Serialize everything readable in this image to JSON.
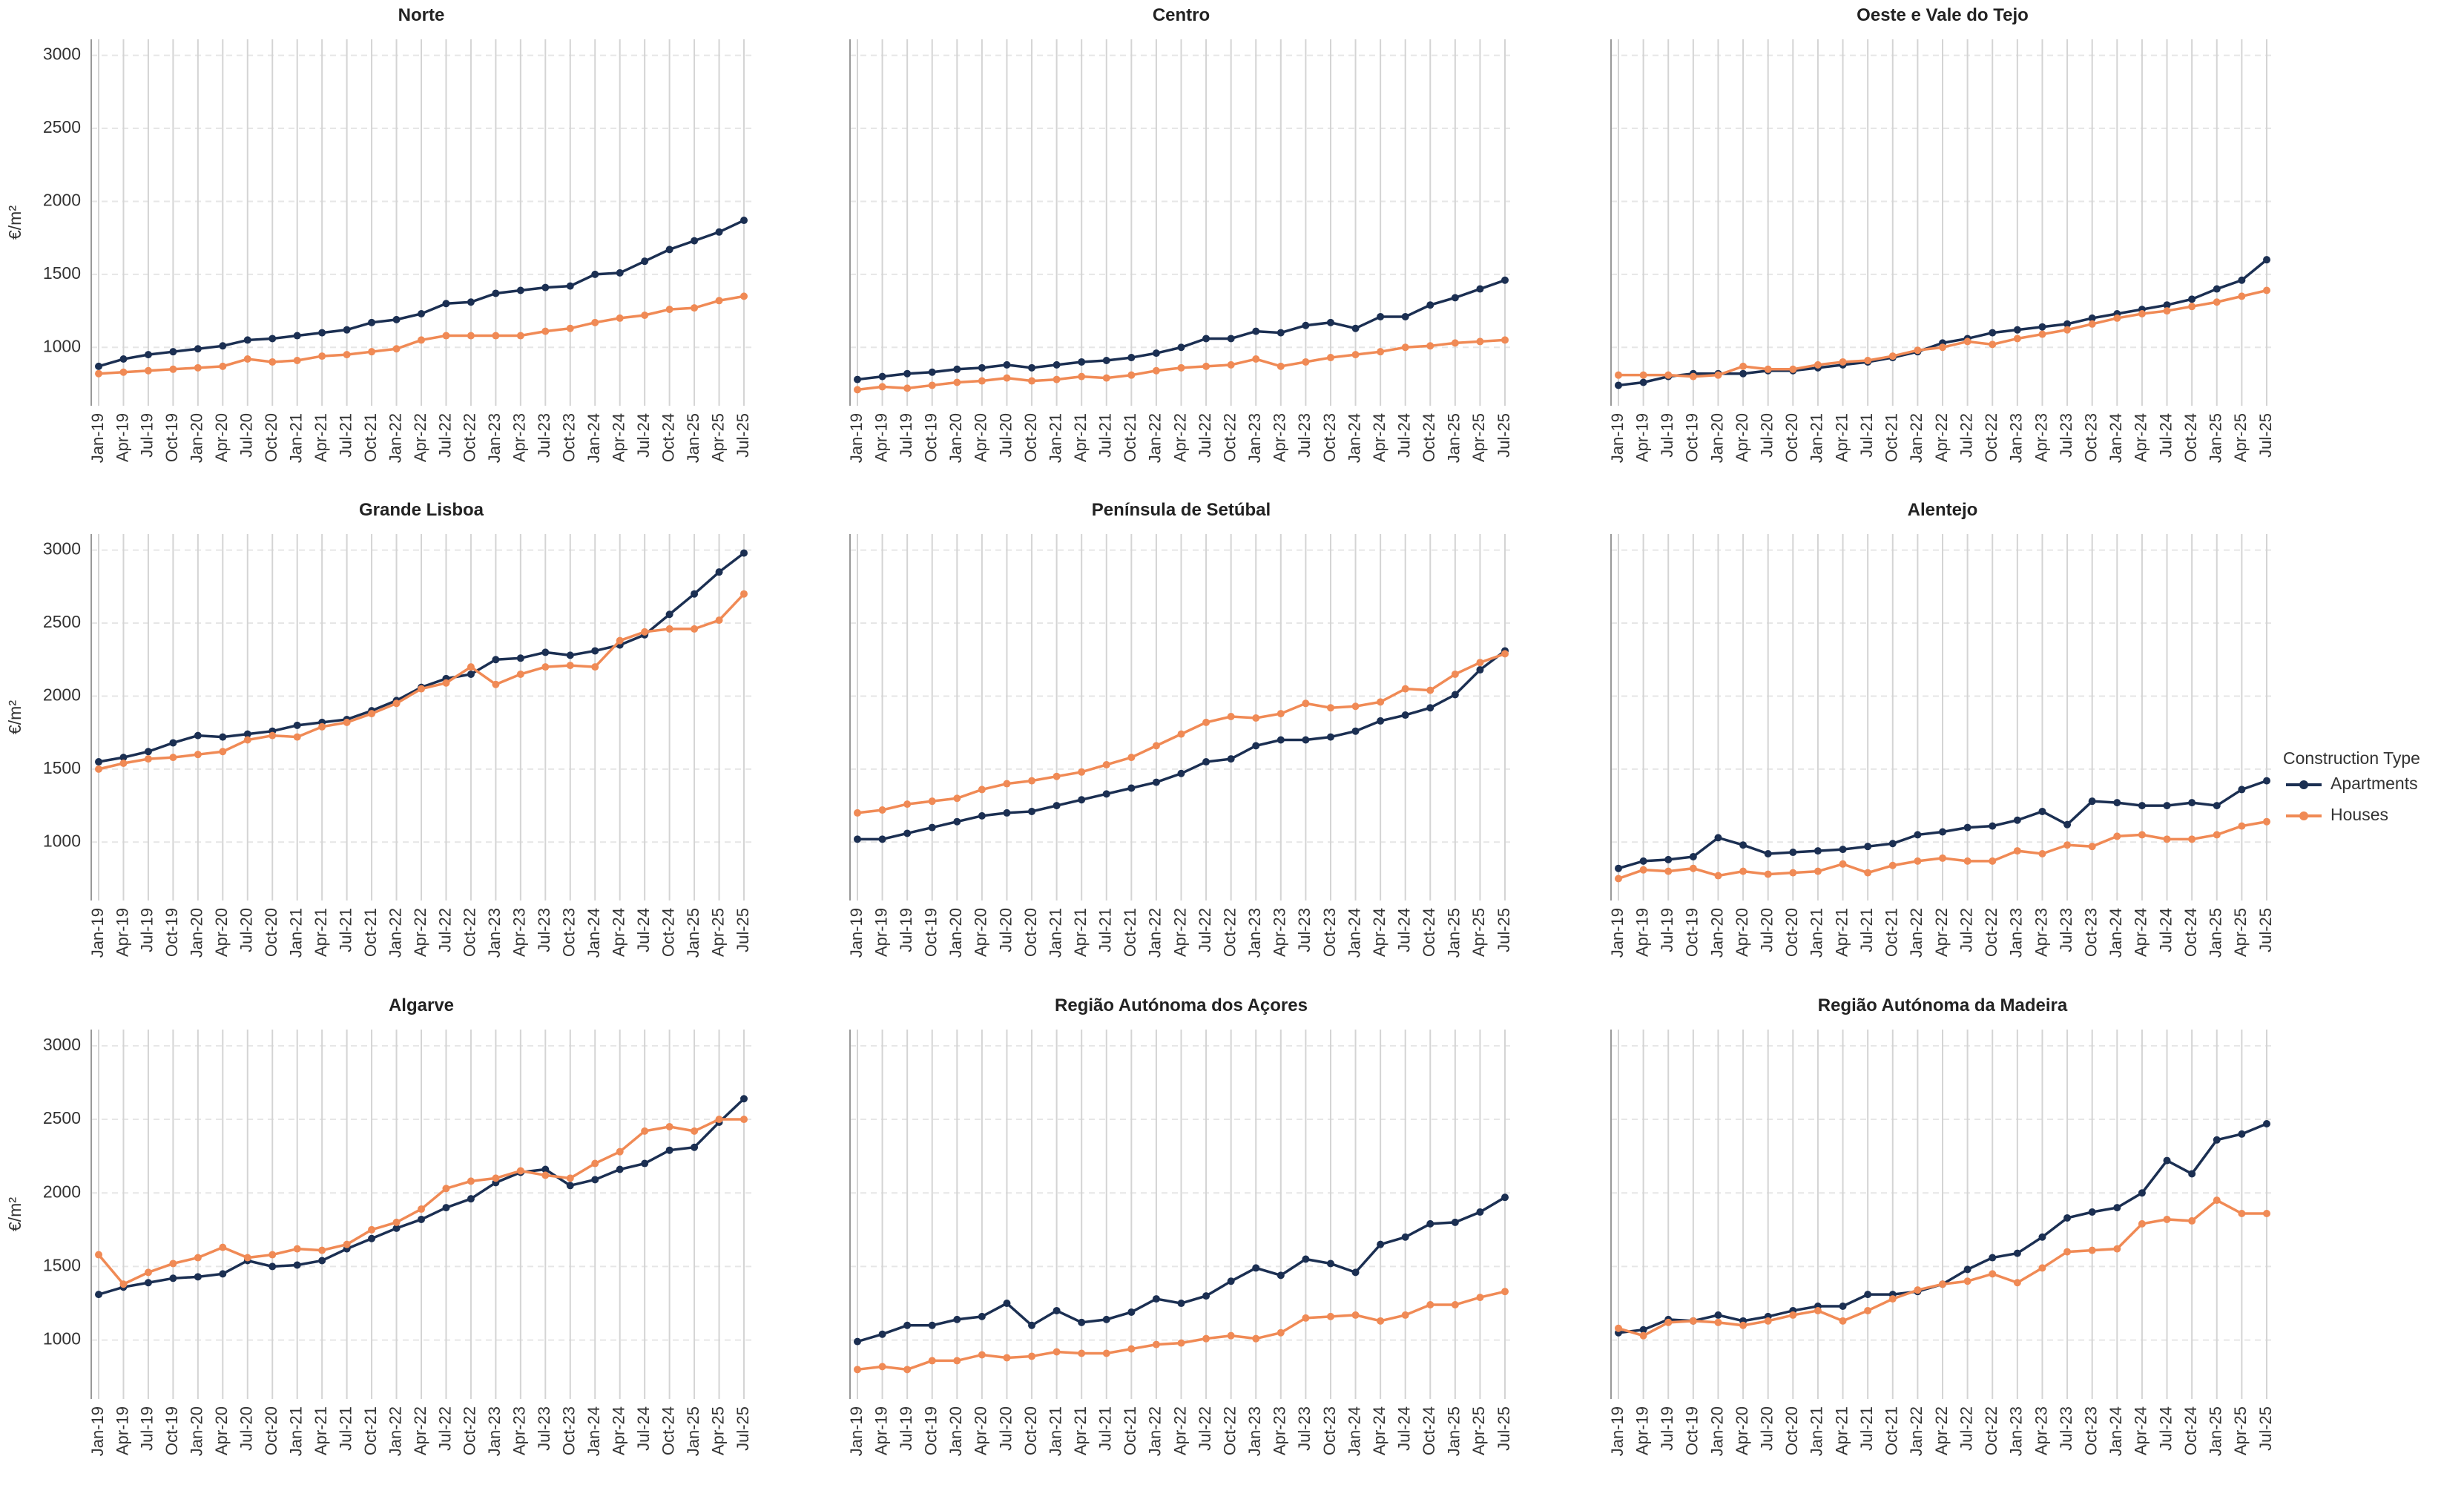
{
  "legend_title": "Construction Type",
  "chart_data": [
    {
      "type": "line",
      "title": "Norte",
      "y_label": "€/m²",
      "categories": [
        "Jan-19",
        "Apr-19",
        "Jul-19",
        "Oct-19",
        "Jan-20",
        "Apr-20",
        "Jul-20",
        "Oct-20",
        "Jan-21",
        "Apr-21",
        "Jul-21",
        "Oct-21",
        "Jan-22",
        "Apr-22",
        "Jul-22",
        "Oct-22",
        "Jan-23",
        "Apr-23",
        "Jul-23",
        "Oct-23",
        "Jan-24",
        "Apr-24",
        "Jul-24",
        "Oct-24",
        "Jan-25",
        "Apr-25",
        "Jul-25"
      ],
      "ylim": [
        600,
        3110
      ],
      "yticks": [
        1000,
        1500,
        2000,
        2500,
        3000
      ],
      "grid": true,
      "series": [
        {
          "name": "Apartments",
          "color": "#1b2f52",
          "values": [
            870,
            920,
            950,
            970,
            990,
            1010,
            1050,
            1060,
            1080,
            1100,
            1120,
            1170,
            1190,
            1230,
            1300,
            1310,
            1370,
            1390,
            1410,
            1420,
            1500,
            1510,
            1590,
            1670,
            1730,
            1790,
            1870
          ]
        },
        {
          "name": "Houses",
          "color": "#f08a55",
          "values": [
            820,
            830,
            840,
            850,
            860,
            870,
            920,
            900,
            910,
            940,
            950,
            970,
            990,
            1050,
            1080,
            1080,
            1080,
            1080,
            1110,
            1130,
            1170,
            1200,
            1220,
            1260,
            1270,
            1320,
            1350
          ]
        }
      ]
    },
    {
      "type": "line",
      "title": "Centro",
      "categories": [
        "Jan-19",
        "Apr-19",
        "Jul-19",
        "Oct-19",
        "Jan-20",
        "Apr-20",
        "Jul-20",
        "Oct-20",
        "Jan-21",
        "Apr-21",
        "Jul-21",
        "Oct-21",
        "Jan-22",
        "Apr-22",
        "Jul-22",
        "Oct-22",
        "Jan-23",
        "Apr-23",
        "Jul-23",
        "Oct-23",
        "Jan-24",
        "Apr-24",
        "Jul-24",
        "Oct-24",
        "Jan-25",
        "Apr-25",
        "Jul-25"
      ],
      "ylim": [
        600,
        3110
      ],
      "yticks": [
        1000,
        1500,
        2000,
        2500,
        3000
      ],
      "grid": true,
      "series": [
        {
          "name": "Apartments",
          "color": "#1b2f52",
          "values": [
            780,
            800,
            820,
            830,
            850,
            860,
            880,
            860,
            880,
            900,
            910,
            930,
            960,
            1000,
            1060,
            1060,
            1110,
            1100,
            1150,
            1170,
            1130,
            1210,
            1210,
            1290,
            1340,
            1400,
            1460
          ]
        },
        {
          "name": "Houses",
          "color": "#f08a55",
          "values": [
            710,
            730,
            720,
            740,
            760,
            770,
            790,
            770,
            780,
            800,
            790,
            810,
            840,
            860,
            870,
            880,
            920,
            870,
            900,
            930,
            950,
            970,
            1000,
            1010,
            1030,
            1040,
            1050
          ]
        }
      ]
    },
    {
      "type": "line",
      "title": "Oeste e Vale do Tejo",
      "categories": [
        "Jan-19",
        "Apr-19",
        "Jul-19",
        "Oct-19",
        "Jan-20",
        "Apr-20",
        "Jul-20",
        "Oct-20",
        "Jan-21",
        "Apr-21",
        "Jul-21",
        "Oct-21",
        "Jan-22",
        "Apr-22",
        "Jul-22",
        "Oct-22",
        "Jan-23",
        "Apr-23",
        "Jul-23",
        "Oct-23",
        "Jan-24",
        "Apr-24",
        "Jul-24",
        "Oct-24",
        "Jan-25",
        "Apr-25",
        "Jul-25"
      ],
      "ylim": [
        600,
        3110
      ],
      "yticks": [
        1000,
        1500,
        2000,
        2500,
        3000
      ],
      "grid": true,
      "series": [
        {
          "name": "Apartments",
          "color": "#1b2f52",
          "values": [
            740,
            760,
            800,
            820,
            820,
            820,
            840,
            840,
            860,
            880,
            900,
            930,
            970,
            1030,
            1060,
            1100,
            1120,
            1140,
            1160,
            1200,
            1230,
            1260,
            1290,
            1330,
            1400,
            1460,
            1600
          ]
        },
        {
          "name": "Houses",
          "color": "#f08a55",
          "values": [
            810,
            810,
            810,
            800,
            810,
            870,
            850,
            850,
            880,
            900,
            910,
            940,
            980,
            1000,
            1040,
            1020,
            1060,
            1090,
            1120,
            1160,
            1200,
            1230,
            1250,
            1280,
            1310,
            1350,
            1390
          ]
        }
      ]
    },
    {
      "type": "line",
      "title": "Grande Lisboa",
      "y_label": "€/m²",
      "categories": [
        "Jan-19",
        "Apr-19",
        "Jul-19",
        "Oct-19",
        "Jan-20",
        "Apr-20",
        "Jul-20",
        "Oct-20",
        "Jan-21",
        "Apr-21",
        "Jul-21",
        "Oct-21",
        "Jan-22",
        "Apr-22",
        "Jul-22",
        "Oct-22",
        "Jan-23",
        "Apr-23",
        "Jul-23",
        "Oct-23",
        "Jan-24",
        "Apr-24",
        "Jul-24",
        "Oct-24",
        "Jan-25",
        "Apr-25",
        "Jul-25"
      ],
      "ylim": [
        600,
        3110
      ],
      "yticks": [
        1000,
        1500,
        2000,
        2500,
        3000
      ],
      "grid": true,
      "series": [
        {
          "name": "Apartments",
          "color": "#1b2f52",
          "values": [
            1550,
            1580,
            1620,
            1680,
            1730,
            1720,
            1740,
            1760,
            1800,
            1820,
            1840,
            1900,
            1970,
            2060,
            2120,
            2150,
            2250,
            2260,
            2300,
            2280,
            2310,
            2350,
            2420,
            2560,
            2700,
            2850,
            2980
          ]
        },
        {
          "name": "Houses",
          "color": "#f08a55",
          "values": [
            1500,
            1540,
            1570,
            1580,
            1600,
            1620,
            1700,
            1730,
            1720,
            1790,
            1820,
            1880,
            1950,
            2050,
            2090,
            2200,
            2080,
            2150,
            2200,
            2210,
            2200,
            2380,
            2440,
            2460,
            2460,
            2520,
            2700
          ]
        }
      ]
    },
    {
      "type": "line",
      "title": "Península de Setúbal",
      "categories": [
        "Jan-19",
        "Apr-19",
        "Jul-19",
        "Oct-19",
        "Jan-20",
        "Apr-20",
        "Jul-20",
        "Oct-20",
        "Jan-21",
        "Apr-21",
        "Jul-21",
        "Oct-21",
        "Jan-22",
        "Apr-22",
        "Jul-22",
        "Oct-22",
        "Jan-23",
        "Apr-23",
        "Jul-23",
        "Oct-23",
        "Jan-24",
        "Apr-24",
        "Jul-24",
        "Oct-24",
        "Jan-25",
        "Apr-25",
        "Jul-25"
      ],
      "ylim": [
        600,
        3110
      ],
      "yticks": [
        1000,
        1500,
        2000,
        2500,
        3000
      ],
      "grid": true,
      "series": [
        {
          "name": "Apartments",
          "color": "#1b2f52",
          "values": [
            1020,
            1020,
            1060,
            1100,
            1140,
            1180,
            1200,
            1210,
            1250,
            1290,
            1330,
            1370,
            1410,
            1470,
            1550,
            1570,
            1660,
            1700,
            1700,
            1720,
            1760,
            1830,
            1870,
            1920,
            2010,
            2180,
            2310
          ]
        },
        {
          "name": "Houses",
          "color": "#f08a55",
          "values": [
            1200,
            1220,
            1260,
            1280,
            1300,
            1360,
            1400,
            1420,
            1450,
            1480,
            1530,
            1580,
            1660,
            1740,
            1820,
            1860,
            1850,
            1880,
            1950,
            1920,
            1930,
            1960,
            2050,
            2040,
            2150,
            2230,
            2290
          ]
        }
      ]
    },
    {
      "type": "line",
      "title": "Alentejo",
      "categories": [
        "Jan-19",
        "Apr-19",
        "Jul-19",
        "Oct-19",
        "Jan-20",
        "Apr-20",
        "Jul-20",
        "Oct-20",
        "Jan-21",
        "Apr-21",
        "Jul-21",
        "Oct-21",
        "Jan-22",
        "Apr-22",
        "Jul-22",
        "Oct-22",
        "Jan-23",
        "Apr-23",
        "Jul-23",
        "Oct-23",
        "Jan-24",
        "Apr-24",
        "Jul-24",
        "Oct-24",
        "Jan-25",
        "Apr-25",
        "Jul-25"
      ],
      "ylim": [
        600,
        3110
      ],
      "yticks": [
        1000,
        1500,
        2000,
        2500,
        3000
      ],
      "grid": true,
      "series": [
        {
          "name": "Apartments",
          "color": "#1b2f52",
          "values": [
            820,
            870,
            880,
            900,
            1030,
            980,
            920,
            930,
            940,
            950,
            970,
            990,
            1050,
            1070,
            1100,
            1110,
            1150,
            1210,
            1120,
            1280,
            1270,
            1250,
            1250,
            1270,
            1250,
            1360,
            1420
          ]
        },
        {
          "name": "Houses",
          "color": "#f08a55",
          "values": [
            750,
            810,
            800,
            820,
            770,
            800,
            780,
            790,
            800,
            850,
            790,
            840,
            870,
            890,
            870,
            870,
            940,
            920,
            980,
            970,
            1040,
            1050,
            1020,
            1020,
            1050,
            1110,
            1140
          ]
        }
      ]
    },
    {
      "type": "line",
      "title": "Algarve",
      "y_label": "€/m²",
      "categories": [
        "Jan-19",
        "Apr-19",
        "Jul-19",
        "Oct-19",
        "Jan-20",
        "Apr-20",
        "Jul-20",
        "Oct-20",
        "Jan-21",
        "Apr-21",
        "Jul-21",
        "Oct-21",
        "Jan-22",
        "Apr-22",
        "Jul-22",
        "Oct-22",
        "Jan-23",
        "Apr-23",
        "Jul-23",
        "Oct-23",
        "Jan-24",
        "Apr-24",
        "Jul-24",
        "Oct-24",
        "Jan-25",
        "Apr-25",
        "Jul-25"
      ],
      "ylim": [
        600,
        3110
      ],
      "yticks": [
        1000,
        1500,
        2000,
        2500,
        3000
      ],
      "grid": true,
      "series": [
        {
          "name": "Apartments",
          "color": "#1b2f52",
          "values": [
            1310,
            1360,
            1390,
            1420,
            1430,
            1450,
            1540,
            1500,
            1510,
            1540,
            1620,
            1690,
            1760,
            1820,
            1900,
            1960,
            2070,
            2140,
            2160,
            2050,
            2090,
            2160,
            2200,
            2290,
            2310,
            2480,
            2640
          ]
        },
        {
          "name": "Houses",
          "color": "#f08a55",
          "values": [
            1580,
            1380,
            1460,
            1520,
            1560,
            1630,
            1560,
            1580,
            1620,
            1610,
            1650,
            1750,
            1800,
            1890,
            2030,
            2080,
            2100,
            2150,
            2120,
            2100,
            2200,
            2280,
            2420,
            2450,
            2420,
            2500,
            2500
          ]
        }
      ]
    },
    {
      "type": "line",
      "title": "Região Autónoma dos Açores",
      "categories": [
        "Jan-19",
        "Apr-19",
        "Jul-19",
        "Oct-19",
        "Jan-20",
        "Apr-20",
        "Jul-20",
        "Oct-20",
        "Jan-21",
        "Apr-21",
        "Jul-21",
        "Oct-21",
        "Jan-22",
        "Apr-22",
        "Jul-22",
        "Oct-22",
        "Jan-23",
        "Apr-23",
        "Jul-23",
        "Oct-23",
        "Jan-24",
        "Apr-24",
        "Jul-24",
        "Oct-24",
        "Jan-25",
        "Apr-25",
        "Jul-25"
      ],
      "ylim": [
        600,
        3110
      ],
      "yticks": [
        1000,
        1500,
        2000,
        2500,
        3000
      ],
      "grid": true,
      "series": [
        {
          "name": "Apartments",
          "color": "#1b2f52",
          "values": [
            990,
            1040,
            1100,
            1100,
            1140,
            1160,
            1250,
            1100,
            1200,
            1120,
            1140,
            1190,
            1280,
            1250,
            1300,
            1400,
            1490,
            1440,
            1550,
            1520,
            1460,
            1650,
            1700,
            1790,
            1800,
            1870,
            1970
          ]
        },
        {
          "name": "Houses",
          "color": "#f08a55",
          "values": [
            800,
            820,
            800,
            860,
            860,
            900,
            880,
            890,
            920,
            910,
            910,
            940,
            970,
            980,
            1010,
            1030,
            1010,
            1050,
            1150,
            1160,
            1170,
            1130,
            1170,
            1240,
            1240,
            1290,
            1330
          ]
        }
      ]
    },
    {
      "type": "line",
      "title": "Região Autónoma da Madeira",
      "categories": [
        "Jan-19",
        "Apr-19",
        "Jul-19",
        "Oct-19",
        "Jan-20",
        "Apr-20",
        "Jul-20",
        "Oct-20",
        "Jan-21",
        "Apr-21",
        "Jul-21",
        "Oct-21",
        "Jan-22",
        "Apr-22",
        "Jul-22",
        "Oct-22",
        "Jan-23",
        "Apr-23",
        "Jul-23",
        "Oct-23",
        "Jan-24",
        "Apr-24",
        "Jul-24",
        "Oct-24",
        "Jan-25",
        "Apr-25",
        "Jul-25"
      ],
      "ylim": [
        600,
        3110
      ],
      "yticks": [
        1000,
        1500,
        2000,
        2500,
        3000
      ],
      "grid": true,
      "series": [
        {
          "name": "Apartments",
          "color": "#1b2f52",
          "values": [
            1050,
            1070,
            1140,
            1130,
            1170,
            1130,
            1160,
            1200,
            1230,
            1230,
            1310,
            1310,
            1330,
            1380,
            1480,
            1560,
            1590,
            1700,
            1830,
            1870,
            1900,
            2000,
            2220,
            2130,
            2360,
            2400,
            2470
          ]
        },
        {
          "name": "Houses",
          "color": "#f08a55",
          "values": [
            1080,
            1030,
            1120,
            1130,
            1120,
            1100,
            1130,
            1170,
            1200,
            1130,
            1200,
            1280,
            1340,
            1380,
            1400,
            1450,
            1390,
            1490,
            1600,
            1610,
            1620,
            1790,
            1820,
            1810,
            1950,
            1860,
            1860
          ]
        }
      ]
    }
  ]
}
